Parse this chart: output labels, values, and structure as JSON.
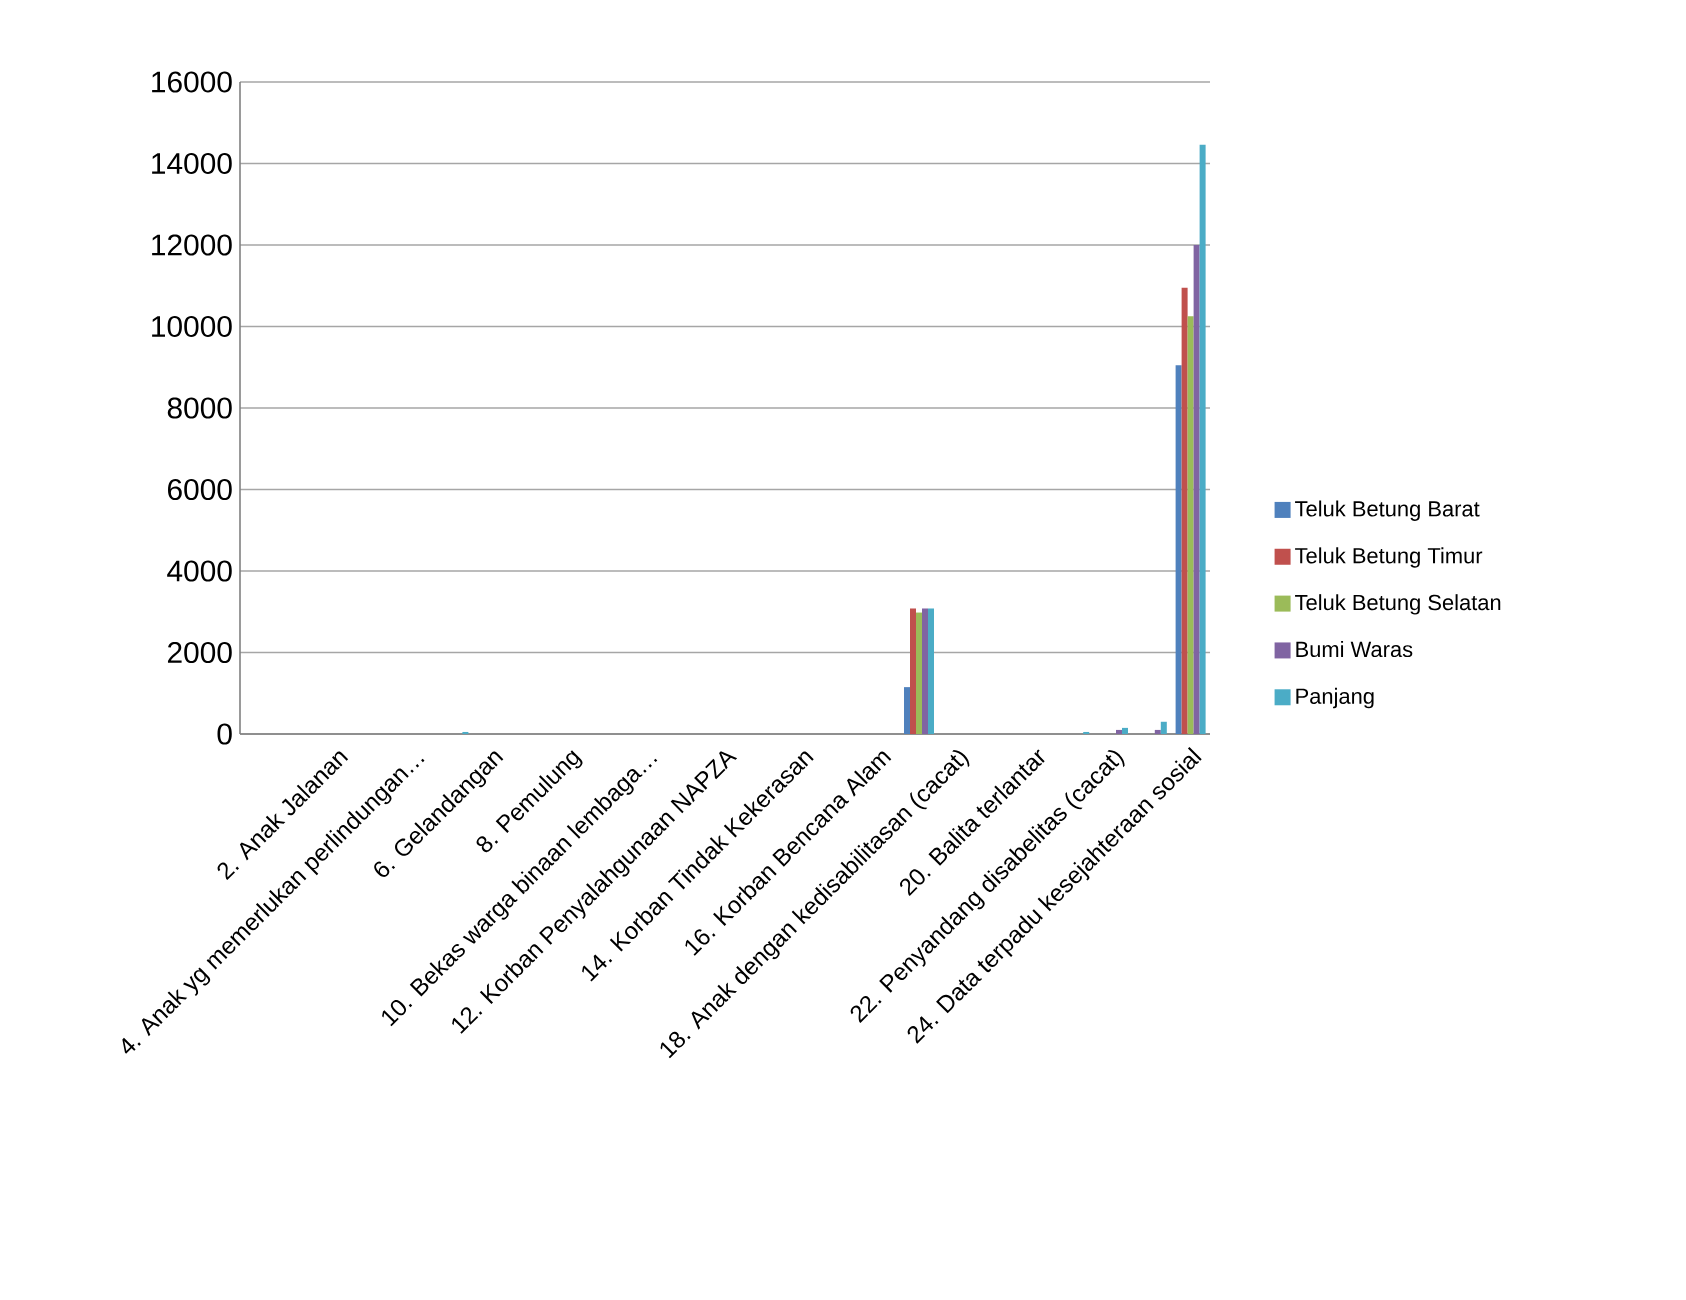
{
  "chart_data": {
    "type": "bar",
    "categories": [
      null,
      null,
      "2. Anak Jalanan",
      null,
      "4. Anak yg memerlukan perlindungan…",
      null,
      "6. Gelandangan",
      null,
      "8. Pemulung",
      null,
      "10. Bekas warga binaan lembaga…",
      null,
      "12. Korban Penyalahgunaan NAPZA",
      null,
      "14. Korban Tindak Kekerasan",
      null,
      "16. Korban Bencana Alam",
      null,
      "18. Anak dengan kedisabilitasan (cacat)",
      null,
      "20. Balita terlantar",
      null,
      "22. Penyandang disabelitas (cacat)",
      null,
      "24. Data terpadu kesejahteraan sosial"
    ],
    "series": [
      {
        "name": "Teluk Betung Barat",
        "color": "#4f81bd",
        "values": [
          0,
          0,
          0,
          0,
          0,
          0,
          0,
          0,
          0,
          0,
          0,
          0,
          0,
          0,
          0,
          0,
          0,
          1150,
          0,
          0,
          0,
          0,
          0,
          0,
          9050
        ]
      },
      {
        "name": "Teluk Betung Timur",
        "color": "#c0504d",
        "values": [
          0,
          0,
          0,
          0,
          0,
          0,
          0,
          0,
          0,
          0,
          0,
          0,
          0,
          0,
          0,
          0,
          0,
          3080,
          0,
          0,
          0,
          0,
          0,
          0,
          10950
        ]
      },
      {
        "name": "Teluk Betung Selatan",
        "color": "#9bbb59",
        "values": [
          0,
          0,
          0,
          0,
          0,
          0,
          0,
          0,
          0,
          0,
          0,
          0,
          0,
          0,
          0,
          0,
          0,
          2980,
          0,
          0,
          0,
          0,
          0,
          0,
          10250
        ]
      },
      {
        "name": "Bumi Waras",
        "color": "#8064a2",
        "values": [
          0,
          0,
          0,
          0,
          0,
          0,
          0,
          0,
          0,
          0,
          0,
          0,
          0,
          0,
          0,
          0,
          0,
          3080,
          0,
          0,
          0,
          0,
          100,
          100,
          12000
        ]
      },
      {
        "name": "Panjang",
        "color": "#4bacc6",
        "values": [
          0,
          0,
          0,
          0,
          0,
          50,
          0,
          0,
          0,
          0,
          0,
          0,
          0,
          0,
          0,
          0,
          0,
          3080,
          0,
          null,
          0,
          50,
          150,
          300,
          14460
        ]
      }
    ],
    "ylim": [
      0,
      16000
    ],
    "yticks": [
      0,
      2000,
      4000,
      6000,
      8000,
      10000,
      12000,
      14000,
      16000
    ],
    "grid": "y",
    "legend": "right"
  }
}
